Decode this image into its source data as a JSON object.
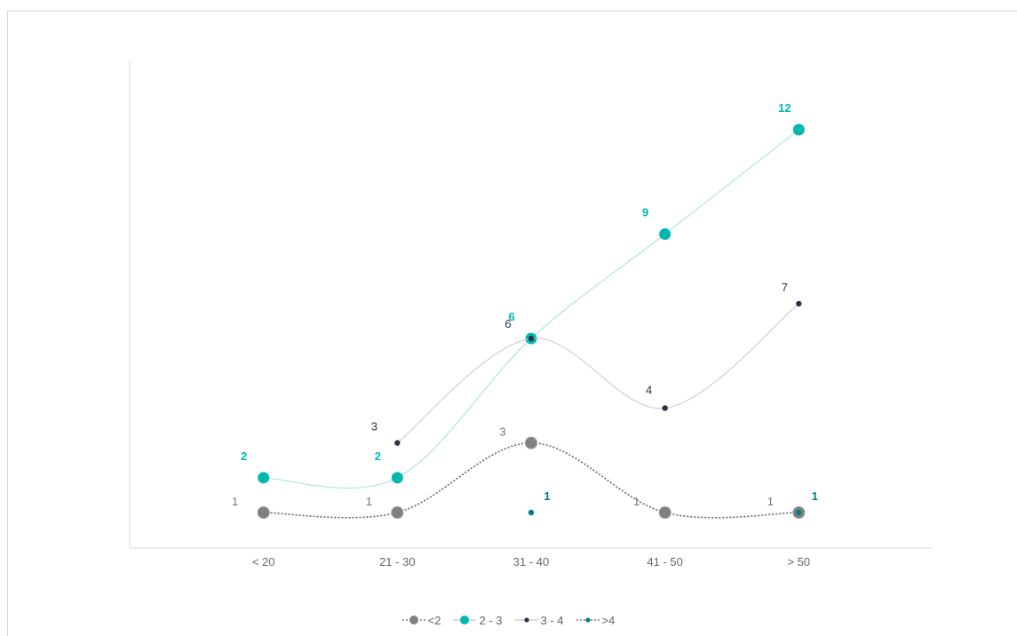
{
  "chart_data": {
    "type": "line",
    "categories": [
      "< 20",
      "21 - 30",
      "31 - 40",
      "41 - 50",
      "> 50"
    ],
    "ylim": [
      0,
      12.8
    ],
    "grid": false,
    "legend_position": "bottom",
    "series": [
      {
        "name": "<2",
        "values": [
          1,
          1,
          3,
          1,
          1
        ],
        "color": "#808080",
        "line": "dotted",
        "curve": "smooth",
        "marker": "large"
      },
      {
        "name": "2 - 3",
        "values": [
          2,
          2,
          6,
          9,
          12
        ],
        "color": "#00b8b0",
        "line": "thin",
        "curve": "smooth",
        "marker": "large"
      },
      {
        "name": "3 - 4",
        "values": [
          null,
          3,
          6,
          4,
          7
        ],
        "color": "#2b3247",
        "line": "thin",
        "curve": "smooth",
        "marker": "small"
      },
      {
        "name": ">4",
        "values": [
          null,
          null,
          1,
          null,
          1
        ],
        "color": "#00807a",
        "line": "dotted",
        "curve": "none",
        "marker": "small"
      }
    ]
  }
}
